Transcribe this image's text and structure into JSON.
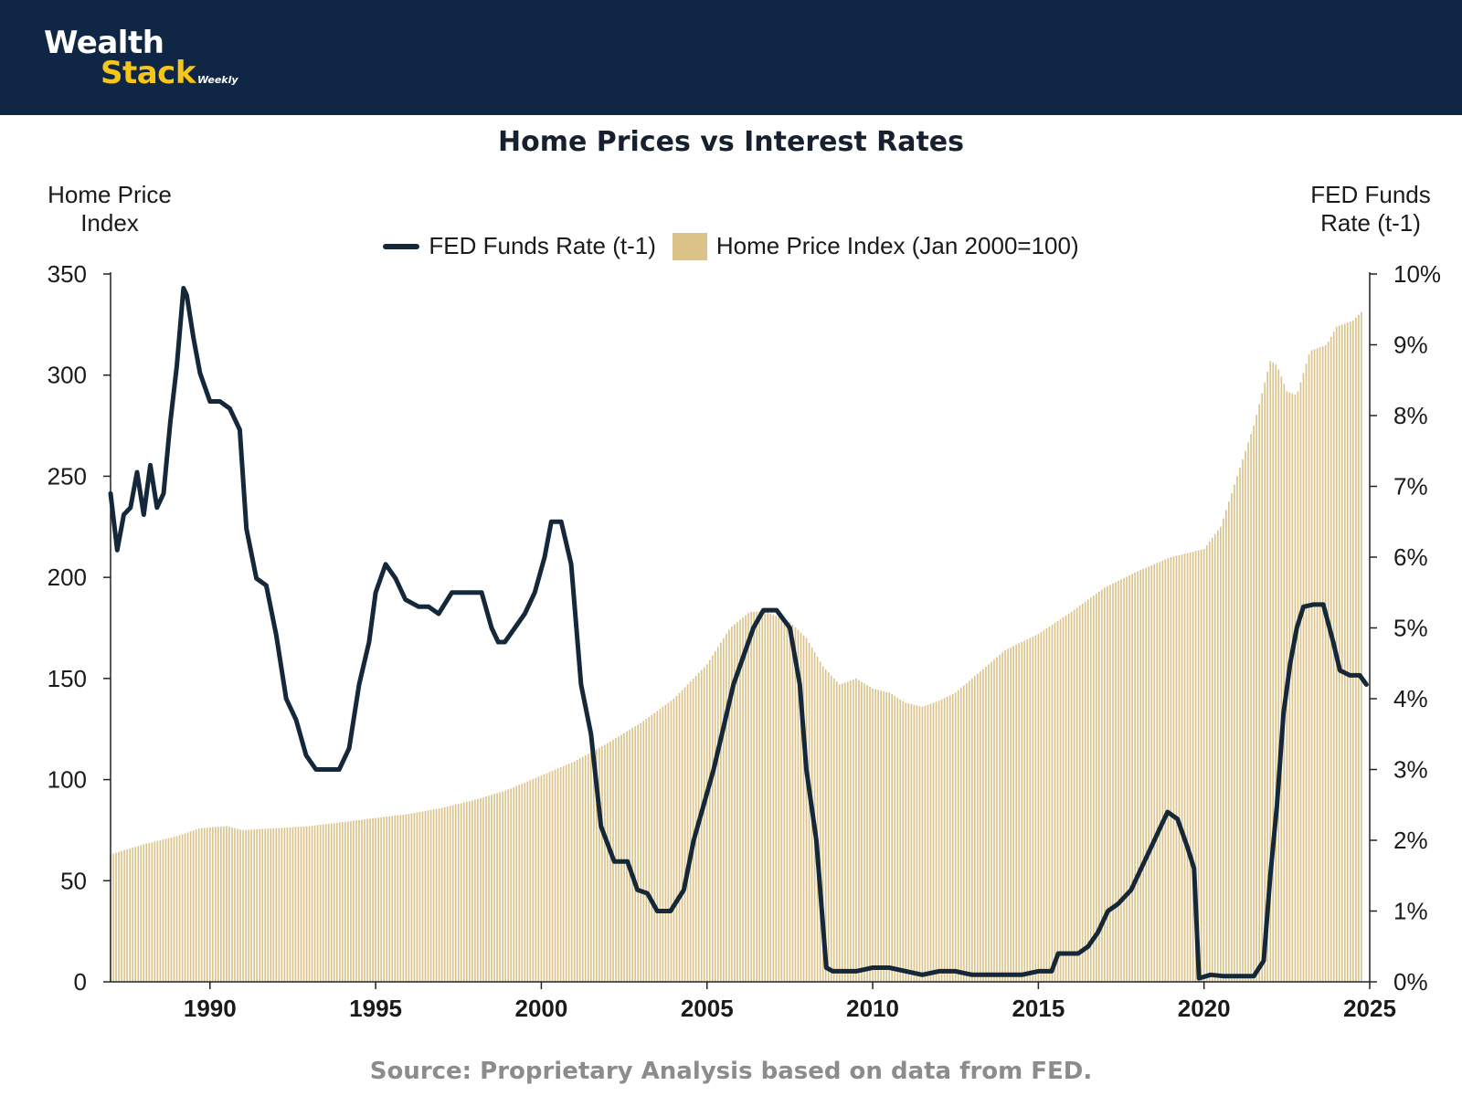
{
  "header": {
    "logo_line1": "Wealth",
    "logo_line2": "Stack",
    "logo_sub": "Weekly"
  },
  "colors": {
    "header_bg": "#0f2745",
    "logo_accent": "#f5c518",
    "bar_fill": "#dbc38a",
    "line_color": "#15283a",
    "source_text": "#8c8c8c"
  },
  "chart_data": {
    "type": "bar+line",
    "title": "Home Prices vs Interest Rates",
    "ylabel_left": "Home Price Index",
    "ylabel_right": "FED Funds Rate (t-1)",
    "source": "Source: Proprietary Analysis based on data from FED.",
    "xlim": [
      1987,
      2025
    ],
    "x_ticks": [
      "1990",
      "1995",
      "2000",
      "2005",
      "2010",
      "2015",
      "2020",
      "2025"
    ],
    "x_tick_values": [
      1990,
      1995,
      2000,
      2005,
      2010,
      2015,
      2020,
      2025
    ],
    "ylim_left": [
      0,
      350
    ],
    "y_ticks_left": [
      "0",
      "50",
      "100",
      "150",
      "200",
      "250",
      "300",
      "350"
    ],
    "y_tick_values_left": [
      0,
      50,
      100,
      150,
      200,
      250,
      300,
      350
    ],
    "ylim_right": [
      0,
      10
    ],
    "y_ticks_right": [
      "0%",
      "1%",
      "2%",
      "3%",
      "4%",
      "5%",
      "6%",
      "7%",
      "8%",
      "9%",
      "10%"
    ],
    "y_tick_values_right": [
      0,
      1,
      2,
      3,
      4,
      5,
      6,
      7,
      8,
      9,
      10
    ],
    "legend": [
      "FED Funds Rate (t-1)",
      "Home Price Index (Jan 2000=100)"
    ],
    "series": [
      {
        "name": "Home Price Index (Jan 2000=100)",
        "axis": "left",
        "kind": "bar",
        "x": [
          1987.0,
          1988.0,
          1989.0,
          1989.7,
          1990.5,
          1991.0,
          1992.0,
          1993.0,
          1994.0,
          1995.0,
          1996.0,
          1997.0,
          1998.0,
          1999.0,
          2000.0,
          2001.0,
          2002.0,
          2003.0,
          2004.0,
          2005.0,
          2005.7,
          2006.3,
          2006.8,
          2007.5,
          2008.0,
          2008.5,
          2009.0,
          2009.5,
          2010.0,
          2010.5,
          2011.0,
          2011.5,
          2012.0,
          2012.5,
          2013.0,
          2014.0,
          2015.0,
          2016.0,
          2017.0,
          2018.0,
          2019.0,
          2020.0,
          2020.5,
          2021.0,
          2021.5,
          2022.0,
          2022.2,
          2022.5,
          2022.8,
          2023.2,
          2023.7,
          2024.0,
          2024.5,
          2024.8
        ],
        "values": [
          63,
          68,
          72,
          76,
          77,
          75,
          76,
          77,
          79,
          81,
          83,
          86,
          90,
          95,
          102,
          109,
          118,
          128,
          140,
          157,
          175,
          183,
          183,
          178,
          170,
          156,
          147,
          150,
          145,
          143,
          138,
          136,
          139,
          143,
          150,
          164,
          172,
          183,
          195,
          203,
          210,
          214,
          225,
          250,
          275,
          307,
          305,
          292,
          290,
          312,
          315,
          324,
          327,
          332
        ]
      },
      {
        "name": "FED Funds Rate (t-1)",
        "axis": "right",
        "kind": "line",
        "x": [
          1987.0,
          1987.2,
          1987.4,
          1987.6,
          1987.8,
          1988.0,
          1988.2,
          1988.4,
          1988.6,
          1988.8,
          1989.0,
          1989.2,
          1989.3,
          1989.5,
          1989.7,
          1990.0,
          1990.3,
          1990.6,
          1990.9,
          1991.1,
          1991.4,
          1991.7,
          1992.0,
          1992.3,
          1992.6,
          1992.9,
          1993.2,
          1993.5,
          1993.9,
          1994.2,
          1994.5,
          1994.8,
          1995.0,
          1995.3,
          1995.6,
          1995.9,
          1996.3,
          1996.6,
          1996.9,
          1997.3,
          1997.7,
          1998.2,
          1998.5,
          1998.7,
          1998.9,
          1999.2,
          1999.5,
          1999.8,
          2000.1,
          2000.3,
          2000.6,
          2000.9,
          2001.2,
          2001.5,
          2001.8,
          2002.2,
          2002.6,
          2002.9,
          2003.2,
          2003.5,
          2003.9,
          2004.3,
          2004.6,
          2004.9,
          2005.2,
          2005.5,
          2005.8,
          2006.1,
          2006.4,
          2006.7,
          2007.1,
          2007.5,
          2007.8,
          2008.0,
          2008.3,
          2008.6,
          2008.8,
          2009.0,
          2009.5,
          2010.0,
          2010.5,
          2011.0,
          2011.5,
          2012.0,
          2012.5,
          2013.0,
          2013.5,
          2014.0,
          2014.5,
          2015.0,
          2015.4,
          2015.6,
          2015.9,
          2016.2,
          2016.5,
          2016.8,
          2017.1,
          2017.4,
          2017.8,
          2018.1,
          2018.4,
          2018.7,
          2018.9,
          2019.2,
          2019.5,
          2019.7,
          2019.85,
          2020.2,
          2020.6,
          2021.0,
          2021.5,
          2021.8,
          2022.0,
          2022.2,
          2022.4,
          2022.6,
          2022.8,
          2023.0,
          2023.3,
          2023.6,
          2023.9,
          2024.1,
          2024.4,
          2024.7,
          2024.9
        ],
        "values": [
          6.9,
          6.1,
          6.6,
          6.7,
          7.2,
          6.6,
          7.3,
          6.7,
          6.9,
          7.9,
          8.7,
          9.8,
          9.7,
          9.1,
          8.6,
          8.2,
          8.2,
          8.1,
          7.8,
          6.4,
          5.7,
          5.6,
          4.9,
          4.0,
          3.7,
          3.2,
          3.0,
          3.0,
          3.0,
          3.3,
          4.2,
          4.8,
          5.5,
          5.9,
          5.7,
          5.4,
          5.3,
          5.3,
          5.2,
          5.5,
          5.5,
          5.5,
          5.0,
          4.8,
          4.8,
          5.0,
          5.2,
          5.5,
          6.0,
          6.5,
          6.5,
          5.9,
          4.2,
          3.5,
          2.2,
          1.7,
          1.7,
          1.3,
          1.25,
          1.0,
          1.0,
          1.3,
          2.0,
          2.5,
          3.0,
          3.6,
          4.2,
          4.6,
          5.0,
          5.25,
          5.25,
          5.0,
          4.2,
          3.0,
          2.0,
          0.2,
          0.15,
          0.15,
          0.15,
          0.2,
          0.2,
          0.15,
          0.1,
          0.15,
          0.15,
          0.1,
          0.1,
          0.1,
          0.1,
          0.15,
          0.15,
          0.4,
          0.4,
          0.4,
          0.5,
          0.7,
          1.0,
          1.1,
          1.3,
          1.6,
          1.9,
          2.2,
          2.4,
          2.3,
          1.9,
          1.6,
          0.05,
          0.1,
          0.08,
          0.08,
          0.08,
          0.3,
          1.5,
          2.5,
          3.8,
          4.5,
          5.0,
          5.3,
          5.33,
          5.33,
          4.8,
          4.4,
          4.33,
          4.33,
          4.2
        ]
      }
    ]
  }
}
